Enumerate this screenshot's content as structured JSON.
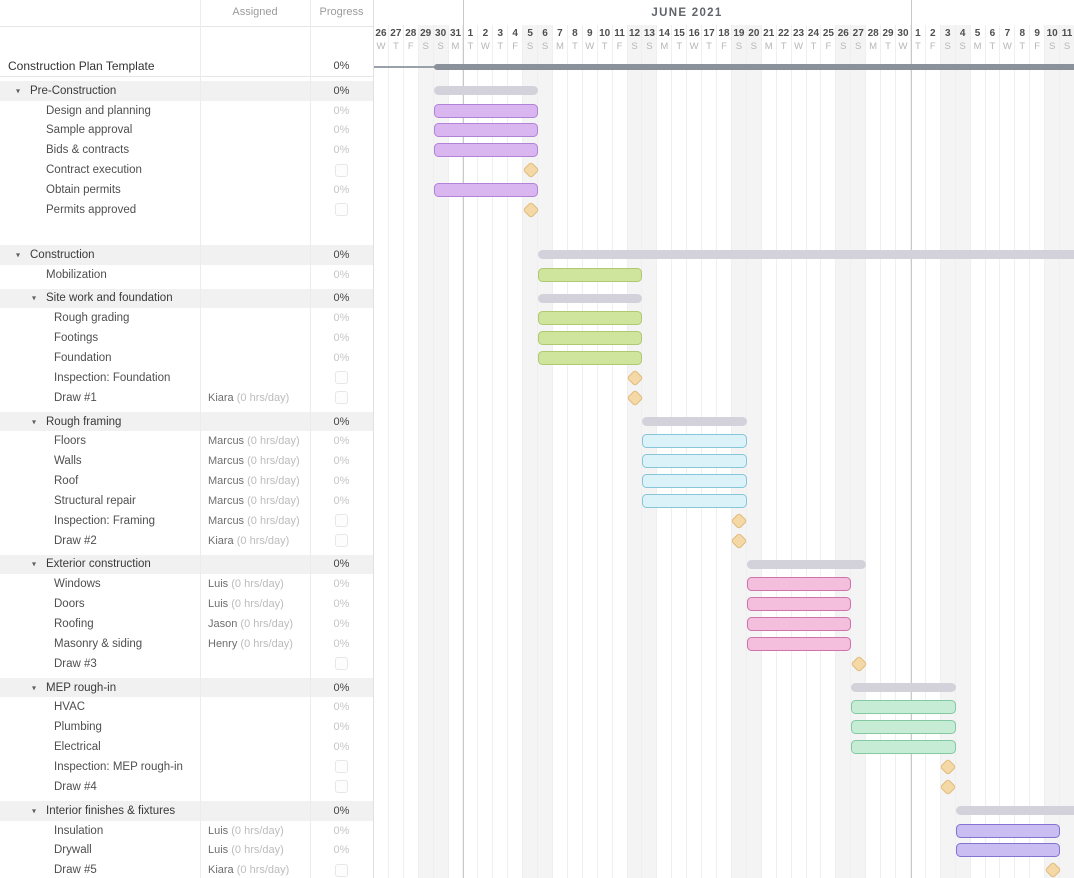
{
  "columns": {
    "assigned": "Assigned",
    "progress": "Progress"
  },
  "timeline": {
    "month_label": "JUNE 2021",
    "days": [
      {
        "d": "26",
        "w": "W"
      },
      {
        "d": "27",
        "w": "T"
      },
      {
        "d": "28",
        "w": "F"
      },
      {
        "d": "29",
        "w": "S",
        "we": true
      },
      {
        "d": "30",
        "w": "S",
        "we": true
      },
      {
        "d": "31",
        "w": "M"
      },
      {
        "d": "1",
        "w": "T",
        "ms": true
      },
      {
        "d": "2",
        "w": "W"
      },
      {
        "d": "3",
        "w": "T"
      },
      {
        "d": "4",
        "w": "F"
      },
      {
        "d": "5",
        "w": "S",
        "we": true
      },
      {
        "d": "6",
        "w": "S",
        "we": true
      },
      {
        "d": "7",
        "w": "M"
      },
      {
        "d": "8",
        "w": "T"
      },
      {
        "d": "9",
        "w": "W"
      },
      {
        "d": "10",
        "w": "T"
      },
      {
        "d": "11",
        "w": "F"
      },
      {
        "d": "12",
        "w": "S",
        "we": true
      },
      {
        "d": "13",
        "w": "S",
        "we": true
      },
      {
        "d": "14",
        "w": "M"
      },
      {
        "d": "15",
        "w": "T"
      },
      {
        "d": "16",
        "w": "W"
      },
      {
        "d": "17",
        "w": "T"
      },
      {
        "d": "18",
        "w": "F"
      },
      {
        "d": "19",
        "w": "S",
        "we": true
      },
      {
        "d": "20",
        "w": "S",
        "we": true
      },
      {
        "d": "21",
        "w": "M"
      },
      {
        "d": "22",
        "w": "T"
      },
      {
        "d": "23",
        "w": "W"
      },
      {
        "d": "24",
        "w": "T"
      },
      {
        "d": "25",
        "w": "F"
      },
      {
        "d": "26",
        "w": "S",
        "we": true
      },
      {
        "d": "27",
        "w": "S",
        "we": true
      },
      {
        "d": "28",
        "w": "M"
      },
      {
        "d": "29",
        "w": "T"
      },
      {
        "d": "30",
        "w": "W"
      },
      {
        "d": "1",
        "w": "T",
        "ms": true
      },
      {
        "d": "2",
        "w": "F"
      },
      {
        "d": "3",
        "w": "S",
        "we": true
      },
      {
        "d": "4",
        "w": "S",
        "we": true
      },
      {
        "d": "5",
        "w": "M"
      },
      {
        "d": "6",
        "w": "T"
      },
      {
        "d": "7",
        "w": "W"
      },
      {
        "d": "8",
        "w": "T"
      },
      {
        "d": "9",
        "w": "F"
      },
      {
        "d": "10",
        "w": "S",
        "we": true
      },
      {
        "d": "11",
        "w": "S",
        "we": true
      }
    ]
  },
  "colors": {
    "purple": {
      "fill": "#dab6f0",
      "line": "#b183d8"
    },
    "green": {
      "fill": "#cfe49d",
      "line": "#aec96f"
    },
    "cyan": {
      "fill": "#dbf2f9",
      "line": "#87c6d9"
    },
    "pink": {
      "fill": "#f4bedd",
      "line": "#cf73ab"
    },
    "mint": {
      "fill": "#c6ecd5",
      "line": "#83caa2"
    },
    "periwinkle": {
      "fill": "#c9bdf1",
      "line": "#8374d3"
    },
    "groupbar": "#d3d2db",
    "projectbar": "#8b919b",
    "milestone": {
      "fill": "#f4d9a6",
      "line": "#e0ba7c"
    },
    "weekend_bg": "#f4f4f5"
  },
  "rate_text": "(0 hrs/day)",
  "rows": [
    {
      "name": "Construction Plan Template",
      "level": 0,
      "kind": "project",
      "progress": "0%",
      "bar": {
        "start": 4,
        "days": 43,
        "open": true
      }
    },
    {
      "name": "Pre-Construction",
      "level": 1,
      "kind": "group",
      "gap": 4,
      "progress": "0%",
      "bar": {
        "start": 4,
        "days": 7,
        "color": "groupbar"
      }
    },
    {
      "name": "Design and planning",
      "level": 2,
      "kind": "task",
      "progress": "0%",
      "bar": {
        "start": 4,
        "days": 7,
        "color": "purple"
      }
    },
    {
      "name": "Sample approval",
      "level": 2,
      "kind": "task",
      "progress": "0%",
      "bar": {
        "start": 4,
        "days": 7,
        "color": "purple"
      }
    },
    {
      "name": "Bids & contracts",
      "level": 2,
      "kind": "task",
      "progress": "0%",
      "bar": {
        "start": 4,
        "days": 7,
        "color": "purple"
      }
    },
    {
      "name": "Contract execution",
      "level": 2,
      "kind": "task",
      "progress": null,
      "milestone": 10
    },
    {
      "name": "Obtain permits",
      "level": 2,
      "kind": "task",
      "progress": "0%",
      "bar": {
        "start": 4,
        "days": 7,
        "color": "purple"
      }
    },
    {
      "name": "Permits approved",
      "level": 2,
      "kind": "task",
      "progress": null,
      "milestone": 10
    },
    {
      "name": "Construction",
      "level": 1,
      "kind": "group",
      "gap": 25,
      "progress": "0%",
      "bar": {
        "start": 11,
        "days": 36,
        "color": "groupbar",
        "open": true
      }
    },
    {
      "name": "Mobilization",
      "level": 2,
      "kind": "task",
      "progress": "0%",
      "bar": {
        "start": 11,
        "days": 7,
        "color": "green"
      }
    },
    {
      "name": "Site work and foundation",
      "level": 2,
      "kind": "group",
      "gap": 4,
      "progress": "0%",
      "bar": {
        "start": 11,
        "days": 7,
        "color": "groupbar"
      }
    },
    {
      "name": "Rough grading",
      "level": 3,
      "kind": "task",
      "progress": "0%",
      "bar": {
        "start": 11,
        "days": 7,
        "color": "green"
      }
    },
    {
      "name": "Footings",
      "level": 3,
      "kind": "task",
      "progress": "0%",
      "bar": {
        "start": 11,
        "days": 7,
        "color": "green"
      }
    },
    {
      "name": "Foundation",
      "level": 3,
      "kind": "task",
      "progress": "0%",
      "bar": {
        "start": 11,
        "days": 7,
        "color": "green"
      }
    },
    {
      "name": "Inspection: Foundation",
      "level": 3,
      "kind": "task",
      "progress": null,
      "milestone": 17
    },
    {
      "name": "Draw #1",
      "level": 3,
      "kind": "task",
      "assigned": "Kiara",
      "progress": null,
      "milestone": 17
    },
    {
      "name": "Rough framing",
      "level": 2,
      "kind": "group",
      "gap": 4,
      "progress": "0%",
      "bar": {
        "start": 18,
        "days": 7,
        "color": "groupbar"
      }
    },
    {
      "name": "Floors",
      "level": 3,
      "kind": "task",
      "assigned": "Marcus",
      "progress": "0%",
      "bar": {
        "start": 18,
        "days": 7,
        "color": "cyan"
      }
    },
    {
      "name": "Walls",
      "level": 3,
      "kind": "task",
      "assigned": "Marcus",
      "progress": "0%",
      "bar": {
        "start": 18,
        "days": 7,
        "color": "cyan"
      }
    },
    {
      "name": "Roof",
      "level": 3,
      "kind": "task",
      "assigned": "Marcus",
      "progress": "0%",
      "bar": {
        "start": 18,
        "days": 7,
        "color": "cyan"
      }
    },
    {
      "name": "Structural repair",
      "level": 3,
      "kind": "task",
      "assigned": "Marcus",
      "progress": "0%",
      "bar": {
        "start": 18,
        "days": 7,
        "color": "cyan"
      }
    },
    {
      "name": "Inspection: Framing",
      "level": 3,
      "kind": "task",
      "assigned": "Marcus",
      "progress": null,
      "milestone": 24
    },
    {
      "name": "Draw #2",
      "level": 3,
      "kind": "task",
      "assigned": "Kiara",
      "progress": null,
      "milestone": 24
    },
    {
      "name": "Exterior construction",
      "level": 2,
      "kind": "group",
      "gap": 4,
      "progress": "0%",
      "bar": {
        "start": 25,
        "days": 8,
        "color": "groupbar"
      }
    },
    {
      "name": "Windows",
      "level": 3,
      "kind": "task",
      "assigned": "Luis",
      "progress": "0%",
      "bar": {
        "start": 25,
        "days": 7,
        "color": "pink"
      }
    },
    {
      "name": "Doors",
      "level": 3,
      "kind": "task",
      "assigned": "Luis",
      "progress": "0%",
      "bar": {
        "start": 25,
        "days": 7,
        "color": "pink"
      }
    },
    {
      "name": "Roofing",
      "level": 3,
      "kind": "task",
      "assigned": "Jason",
      "progress": "0%",
      "bar": {
        "start": 25,
        "days": 7,
        "color": "pink"
      }
    },
    {
      "name": "Masonry & siding",
      "level": 3,
      "kind": "task",
      "assigned": "Henry",
      "progress": "0%",
      "bar": {
        "start": 25,
        "days": 7,
        "color": "pink"
      }
    },
    {
      "name": "Draw #3",
      "level": 3,
      "kind": "task",
      "progress": null,
      "milestone": 32
    },
    {
      "name": "MEP rough-in",
      "level": 2,
      "kind": "group",
      "gap": 4,
      "progress": "0%",
      "bar": {
        "start": 32,
        "days": 7,
        "color": "groupbar"
      }
    },
    {
      "name": "HVAC",
      "level": 3,
      "kind": "task",
      "progress": "0%",
      "bar": {
        "start": 32,
        "days": 7,
        "color": "mint"
      }
    },
    {
      "name": "Plumbing",
      "level": 3,
      "kind": "task",
      "progress": "0%",
      "bar": {
        "start": 32,
        "days": 7,
        "color": "mint"
      }
    },
    {
      "name": "Electrical",
      "level": 3,
      "kind": "task",
      "progress": "0%",
      "bar": {
        "start": 32,
        "days": 7,
        "color": "mint"
      }
    },
    {
      "name": "Inspection: MEP rough-in",
      "level": 3,
      "kind": "task",
      "progress": null,
      "milestone": 38
    },
    {
      "name": "Draw #4",
      "level": 3,
      "kind": "task",
      "progress": null,
      "milestone": 38
    },
    {
      "name": "Interior finishes & fixtures",
      "level": 2,
      "kind": "group",
      "gap": 4,
      "progress": "0%",
      "bar": {
        "start": 39,
        "days": 8,
        "color": "groupbar",
        "open": true
      }
    },
    {
      "name": "Insulation",
      "level": 3,
      "kind": "task",
      "assigned": "Luis",
      "progress": "0%",
      "bar": {
        "start": 39,
        "days": 7,
        "color": "periwinkle"
      }
    },
    {
      "name": "Drywall",
      "level": 3,
      "kind": "task",
      "assigned": "Luis",
      "progress": "0%",
      "bar": {
        "start": 39,
        "days": 7,
        "color": "periwinkle"
      }
    },
    {
      "name": "Draw #5",
      "level": 3,
      "kind": "task",
      "assigned": "Kiara",
      "progress": null,
      "milestone": 45
    }
  ]
}
